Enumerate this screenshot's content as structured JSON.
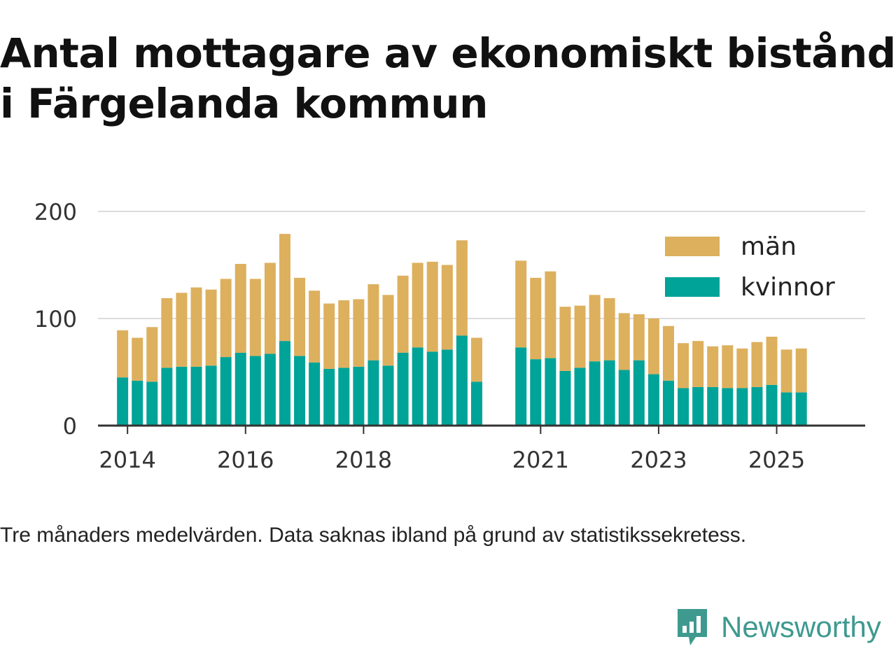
{
  "title_line1": "Antal mottagare av ekonomiskt bistånd",
  "title_line2": "i Färgelanda kommun",
  "note": "Tre månaders medelvärden. Data saknas ibland på grund av statistikssekretess.",
  "brand": {
    "name": "Newsworthy",
    "icon": "newsworthy-logo-icon",
    "color": "#3e9a8f"
  },
  "chart_data": {
    "type": "bar",
    "stacked": true,
    "ylim": [
      0,
      200
    ],
    "yticks": [
      0,
      100,
      200
    ],
    "xlim": [
      "2014-01",
      "2026-12"
    ],
    "xticks": [
      "2014",
      "2016",
      "2018",
      "2021",
      "2023",
      "2025"
    ],
    "grid": true,
    "legend_position": "top-right",
    "x": [
      "2014-05",
      "2014-08",
      "2014-11",
      "2015-02",
      "2015-05",
      "2015-08",
      "2015-11",
      "2016-02",
      "2016-05",
      "2016-08",
      "2016-11",
      "2017-02",
      "2017-05",
      "2017-08",
      "2017-11",
      "2018-02",
      "2018-05",
      "2018-08",
      "2018-11",
      "2019-02",
      "2019-05",
      "2019-08",
      "2019-11",
      "2020-02",
      "2020-05",
      "2020-08",
      "2020-11",
      "2021-02",
      "2021-05",
      "2021-08",
      "2021-11",
      "2022-02",
      "2022-05",
      "2022-08",
      "2022-11",
      "2023-02",
      "2023-05",
      "2023-08",
      "2023-11",
      "2024-02",
      "2024-05",
      "2024-08",
      "2024-11",
      "2025-02",
      "2025-05",
      "2025-08",
      "2025-11"
    ],
    "series": [
      {
        "name": "kvinnor",
        "color": "#00a398",
        "values": [
          45,
          42,
          41,
          54,
          55,
          55,
          56,
          64,
          68,
          65,
          67,
          79,
          65,
          59,
          53,
          54,
          55,
          61,
          56,
          68,
          73,
          69,
          71,
          84,
          41,
          null,
          null,
          73,
          62,
          63,
          51,
          54,
          60,
          61,
          52,
          61,
          48,
          42,
          35,
          36,
          36,
          35,
          35,
          36,
          38,
          31,
          31
        ]
      },
      {
        "name": "män",
        "color": "#ddb05e",
        "values": [
          44,
          40,
          51,
          65,
          69,
          74,
          71,
          73,
          83,
          72,
          85,
          100,
          73,
          67,
          61,
          63,
          63,
          71,
          66,
          72,
          79,
          84,
          79,
          89,
          41,
          null,
          null,
          81,
          76,
          81,
          60,
          58,
          62,
          58,
          53,
          43,
          52,
          51,
          42,
          43,
          38,
          40,
          37,
          42,
          45,
          40,
          41
        ]
      }
    ],
    "legend": [
      "män",
      "kvinnor"
    ]
  }
}
